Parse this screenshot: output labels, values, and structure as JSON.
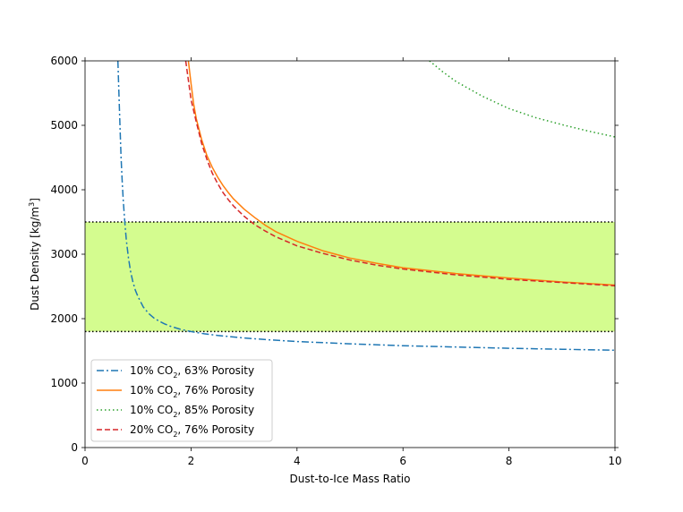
{
  "chart_data": {
    "type": "line",
    "title": "",
    "xlabel": "Dust-to-Ice Mass Ratio",
    "ylabel_main": "Dust Density [kg/m",
    "ylabel_sup": "3",
    "ylabel_close": "]",
    "xlim": [
      0,
      10
    ],
    "ylim": [
      0,
      6000
    ],
    "xticks": [
      0,
      2,
      4,
      6,
      8,
      10
    ],
    "yticks": [
      0,
      1000,
      2000,
      3000,
      4000,
      5000,
      6000
    ],
    "xtick_labels": [
      "0",
      "2",
      "4",
      "6",
      "8",
      "10"
    ],
    "ytick_labels": [
      "0",
      "1000",
      "2000",
      "3000",
      "4000",
      "5000",
      "6000"
    ],
    "band": {
      "low": 1800,
      "high": 3500,
      "color": "#d4fc8f",
      "line_style": "dotted"
    },
    "legend_position": "lower-left",
    "series": [
      {
        "name_prefix": "10% CO",
        "name_sub": "2",
        "name_suffix": ", 63% Porosity",
        "color": "#1f77b4",
        "style": "dashdot",
        "x": [
          0.62,
          0.64,
          0.66,
          0.68,
          0.7,
          0.72,
          0.75,
          0.78,
          0.82,
          0.86,
          0.9,
          0.95,
          1.0,
          1.1,
          1.2,
          1.3,
          1.4,
          1.5,
          1.6,
          1.8,
          2.0,
          2.25,
          2.5,
          3.0,
          3.5,
          4.0,
          5.0,
          6.0,
          7.0,
          8.0,
          9.0,
          10.0
        ],
        "y": [
          6000,
          5480,
          4980,
          4500,
          4150,
          3850,
          3500,
          3210,
          2940,
          2730,
          2580,
          2440,
          2340,
          2180,
          2080,
          2010,
          1960,
          1920,
          1885,
          1835,
          1800,
          1765,
          1740,
          1700,
          1670,
          1645,
          1610,
          1580,
          1560,
          1540,
          1525,
          1510
        ]
      },
      {
        "name_prefix": "10% CO",
        "name_sub": "2",
        "name_suffix": ", 76% Porosity",
        "color": "#ff7f0e",
        "style": "solid",
        "x": [
          1.95,
          2.0,
          2.05,
          2.1,
          2.2,
          2.3,
          2.4,
          2.5,
          2.6,
          2.7,
          2.8,
          3.0,
          3.2,
          3.4,
          3.6,
          4.0,
          4.5,
          5.0,
          5.5,
          6.0,
          7.0,
          8.0,
          9.0,
          10.0
        ],
        "y": [
          6000,
          5650,
          5330,
          5100,
          4780,
          4530,
          4350,
          4200,
          4070,
          3960,
          3860,
          3700,
          3570,
          3450,
          3350,
          3200,
          3050,
          2940,
          2860,
          2790,
          2700,
          2630,
          2570,
          2520
        ]
      },
      {
        "name_prefix": "10% CO",
        "name_sub": "2",
        "name_suffix": ", 85% Porosity",
        "color": "#2ca02c",
        "style": "dotted",
        "x": [
          6.5,
          6.75,
          7.0,
          7.5,
          8.0,
          8.5,
          9.0,
          9.5,
          10.0
        ],
        "y": [
          6000,
          5830,
          5680,
          5450,
          5260,
          5120,
          5010,
          4910,
          4820
        ]
      },
      {
        "name_prefix": "20% CO",
        "name_sub": "2",
        "name_suffix": ", 76% Porosity",
        "color": "#d62728",
        "style": "dashed",
        "x": [
          1.9,
          1.95,
          2.0,
          2.1,
          2.2,
          2.3,
          2.4,
          2.5,
          2.6,
          2.7,
          2.8,
          3.0,
          3.2,
          3.4,
          3.6,
          4.0,
          4.5,
          5.0,
          5.5,
          6.0,
          7.0,
          8.0,
          9.0,
          10.0
        ],
        "y": [
          6000,
          5700,
          5400,
          5050,
          4720,
          4470,
          4260,
          4100,
          3960,
          3850,
          3750,
          3590,
          3460,
          3360,
          3270,
          3130,
          3010,
          2910,
          2830,
          2770,
          2680,
          2610,
          2560,
          2510
        ]
      }
    ]
  }
}
